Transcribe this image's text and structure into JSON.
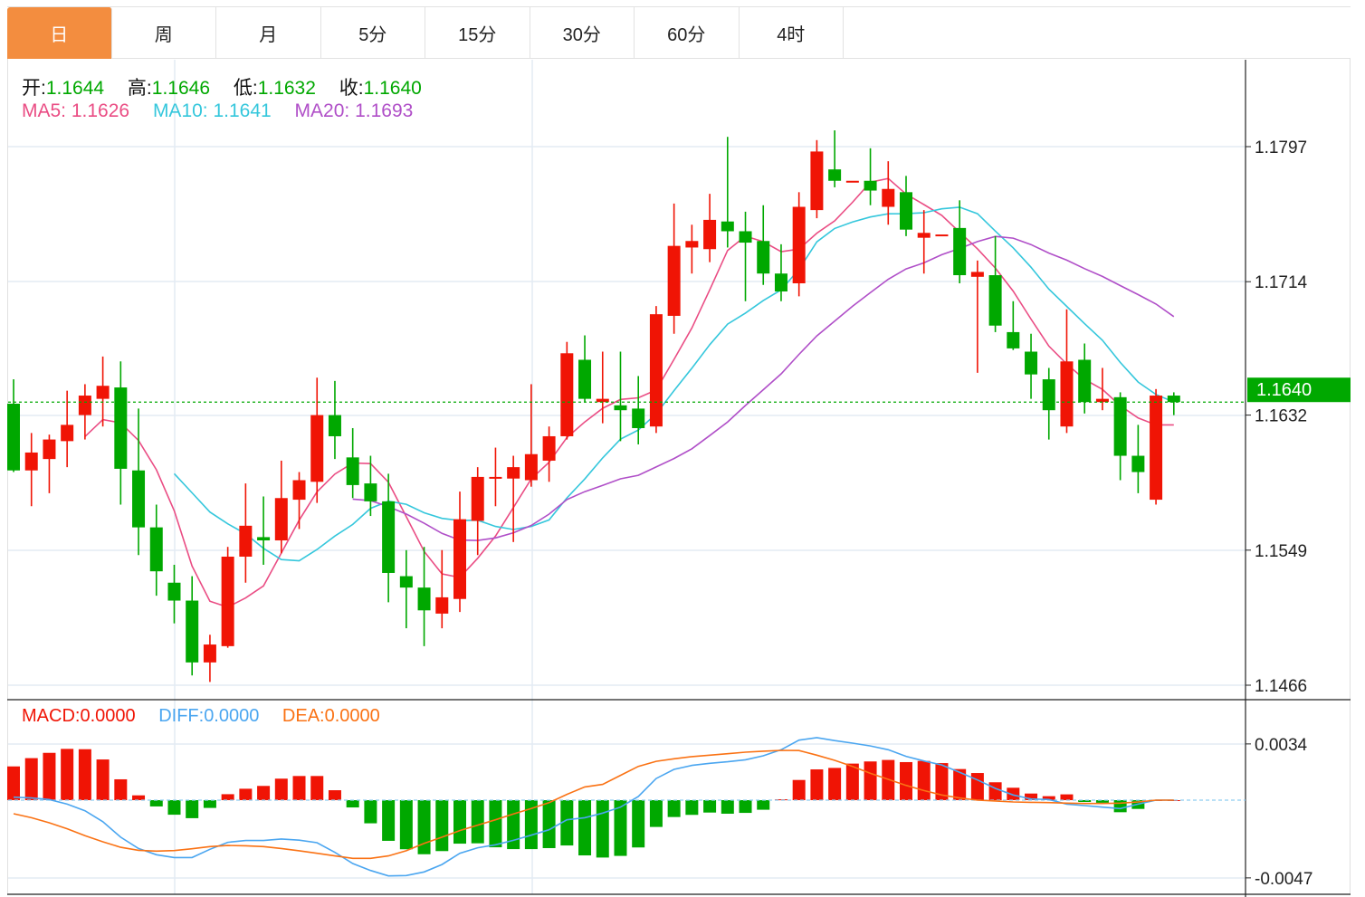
{
  "tabs": [
    {
      "label": "日",
      "active": true
    },
    {
      "label": "周"
    },
    {
      "label": "月"
    },
    {
      "label": "5分"
    },
    {
      "label": "15分"
    },
    {
      "label": "30分"
    },
    {
      "label": "60分"
    },
    {
      "label": "4时"
    }
  ],
  "ohlc_legend": {
    "open_label": "开:",
    "open": "1.1644",
    "high_label": "高:",
    "high": "1.1646",
    "low_label": "低:",
    "low": "1.1632",
    "close_label": "收:",
    "close": "1.1640"
  },
  "ma_legend": {
    "ma5": "MA5: 1.1626",
    "ma10": "MA10: 1.1641",
    "ma20": "MA20: 1.1693"
  },
  "macd_legend": {
    "macd_label": "MACD:",
    "macd": "0.0000",
    "diff_label": "DIFF:",
    "diff": "0.0000",
    "dea_label": "DEA:",
    "dea": "0.0000"
  },
  "colors": {
    "up": "#f01405",
    "down": "#00a800",
    "ma5": "#ea4d84",
    "ma10": "#35c7dc",
    "ma20": "#b04fc8",
    "diff": "#4ba6f0",
    "dea": "#fa7214",
    "accent": "#f38d3f"
  },
  "chart_data": [
    {
      "type": "candlestick",
      "price_axis": {
        "ticks": [
          "1.1797",
          "1.1714",
          "1.1632",
          "1.1549",
          "1.1466"
        ],
        "range": [
          1.1466,
          1.1797
        ]
      },
      "current_price": "1.1640",
      "ma_periods": [
        5,
        10,
        20
      ],
      "candles": [
        [
          1.1639,
          1.1654,
          1.1597,
          1.1598
        ],
        [
          1.1598,
          1.1621,
          1.1576,
          1.1609
        ],
        [
          1.1605,
          1.162,
          1.1584,
          1.1617
        ],
        [
          1.1616,
          1.1647,
          1.16,
          1.1626
        ],
        [
          1.1632,
          1.1651,
          1.1617,
          1.1644
        ],
        [
          1.1642,
          1.1668,
          1.1625,
          1.165
        ],
        [
          1.1649,
          1.1665,
          1.1577,
          1.1599
        ],
        [
          1.1598,
          1.1636,
          1.1546,
          1.1563
        ],
        [
          1.1563,
          1.1577,
          1.1521,
          1.1536
        ],
        [
          1.1529,
          1.154,
          1.1504,
          1.1518
        ],
        [
          1.1518,
          1.1533,
          1.1472,
          1.148
        ],
        [
          1.148,
          1.1497,
          1.1468,
          1.1491
        ],
        [
          1.149,
          1.1551,
          1.1489,
          1.1545
        ],
        [
          1.1545,
          1.159,
          1.1529,
          1.1564
        ],
        [
          1.1557,
          1.1582,
          1.154,
          1.1555
        ],
        [
          1.1555,
          1.1604,
          1.1547,
          1.1581
        ],
        [
          1.158,
          1.1597,
          1.1562,
          1.1592
        ],
        [
          1.1591,
          1.1655,
          1.1578,
          1.1632
        ],
        [
          1.1632,
          1.1653,
          1.1605,
          1.1619
        ],
        [
          1.1606,
          1.1624,
          1.1581,
          1.1589
        ],
        [
          1.159,
          1.1607,
          1.157,
          1.1579
        ],
        [
          1.1579,
          1.1596,
          1.1517,
          1.1535
        ],
        [
          1.1533,
          1.1549,
          1.1501,
          1.1526
        ],
        [
          1.1526,
          1.1551,
          1.149,
          1.1512
        ],
        [
          1.151,
          1.1549,
          1.1501,
          1.152
        ],
        [
          1.1519,
          1.1585,
          1.1511,
          1.1568
        ],
        [
          1.1567,
          1.16,
          1.1546,
          1.1594
        ],
        [
          1.1593,
          1.1612,
          1.1576,
          1.1594
        ],
        [
          1.1593,
          1.1607,
          1.1554,
          1.16
        ],
        [
          1.1592,
          1.1651,
          1.1588,
          1.1608
        ],
        [
          1.1604,
          1.1625,
          1.1591,
          1.1619
        ],
        [
          1.1619,
          1.1677,
          1.1617,
          1.167
        ],
        [
          1.1666,
          1.1681,
          1.164,
          1.1642
        ],
        [
          1.164,
          1.1671,
          1.1627,
          1.1642
        ],
        [
          1.1638,
          1.1671,
          1.1616,
          1.1635
        ],
        [
          1.1636,
          1.1656,
          1.1614,
          1.1624
        ],
        [
          1.1625,
          1.1699,
          1.1621,
          1.1694
        ],
        [
          1.1693,
          1.1762,
          1.1682,
          1.1736
        ],
        [
          1.1735,
          1.1749,
          1.1719,
          1.1739
        ],
        [
          1.1734,
          1.1768,
          1.1726,
          1.1752
        ],
        [
          1.1751,
          1.1803,
          1.1735,
          1.1745
        ],
        [
          1.1745,
          1.1757,
          1.1702,
          1.1738
        ],
        [
          1.1739,
          1.1761,
          1.1712,
          1.1719
        ],
        [
          1.1719,
          1.1737,
          1.1702,
          1.1708
        ],
        [
          1.1713,
          1.1769,
          1.1705,
          1.176
        ],
        [
          1.1758,
          1.1801,
          1.1753,
          1.1794
        ],
        [
          1.1783,
          1.1807,
          1.1772,
          1.1776
        ],
        [
          1.1776,
          1.1776,
          1.1776,
          1.1776
        ],
        [
          1.1776,
          1.1796,
          1.1761,
          1.177
        ],
        [
          1.176,
          1.1788,
          1.1749,
          1.1771
        ],
        [
          1.1769,
          1.1779,
          1.1742,
          1.1746
        ],
        [
          1.1741,
          1.1758,
          1.1719,
          1.1744
        ],
        [
          1.1743,
          1.1743,
          1.1743,
          1.1743
        ],
        [
          1.1747,
          1.1764,
          1.1713,
          1.1718
        ],
        [
          1.1717,
          1.1727,
          1.1658,
          1.172
        ],
        [
          1.1718,
          1.1742,
          1.1683,
          1.1687
        ],
        [
          1.1683,
          1.1702,
          1.1672,
          1.1673
        ],
        [
          1.1671,
          1.1682,
          1.1642,
          1.1657
        ],
        [
          1.1654,
          1.1661,
          1.1617,
          1.1635
        ],
        [
          1.1625,
          1.1697,
          1.1621,
          1.1665
        ],
        [
          1.1666,
          1.1676,
          1.1633,
          1.164
        ],
        [
          1.164,
          1.1661,
          1.1635,
          1.1642
        ],
        [
          1.1643,
          1.1646,
          1.1592,
          1.1607
        ],
        [
          1.1607,
          1.1626,
          1.1584,
          1.1597
        ],
        [
          1.158,
          1.1648,
          1.1577,
          1.1644
        ],
        [
          1.1644,
          1.1646,
          1.1632,
          1.164
        ]
      ]
    },
    {
      "type": "bar+line",
      "axis": {
        "ticks": [
          "0.0034",
          "-0.0047"
        ],
        "range": [
          -0.0047,
          0.0034
        ]
      },
      "macd": [
        0.00204,
        0.00254,
        0.00286,
        0.0031,
        0.00308,
        0.00246,
        0.00126,
        0.00029,
        -0.00038,
        -0.00088,
        -0.00109,
        -0.00047,
        0.00036,
        0.00069,
        0.00086,
        0.0013,
        0.00146,
        0.00146,
        0.0006,
        -0.00044,
        -0.0014,
        -0.00246,
        -0.00297,
        -0.00327,
        -0.00308,
        -0.00263,
        -0.00261,
        -0.00285,
        -0.00296,
        -0.00296,
        -0.0029,
        -0.00274,
        -0.00334,
        -0.00347,
        -0.00337,
        -0.00286,
        -0.00162,
        -0.00102,
        -0.00089,
        -0.00075,
        -0.00082,
        -0.00077,
        -0.00058,
        5e-05,
        0.00122,
        0.00186,
        0.00195,
        0.00221,
        0.00234,
        0.00243,
        0.0023,
        0.00237,
        0.00224,
        0.00188,
        0.00164,
        0.00108,
        0.00075,
        0.0004,
        0.00024,
        0.00035,
        -0.00011,
        -0.00016,
        -0.00073,
        -0.00053,
        0,
        0
      ],
      "diff": [
        0.00018,
        0.00013,
        4e-05,
        -0.00024,
        -0.00064,
        -0.0013,
        -0.00224,
        -0.00292,
        -0.0033,
        -0.00347,
        -0.00347,
        -0.00297,
        -0.00255,
        -0.00244,
        -0.00244,
        -0.00235,
        -0.00242,
        -0.00257,
        -0.00316,
        -0.00383,
        -0.00425,
        -0.00458,
        -0.00456,
        -0.00434,
        -0.00389,
        -0.00321,
        -0.00288,
        -0.0027,
        -0.00243,
        -0.00212,
        -0.00179,
        -0.00119,
        -0.00106,
        -0.00078,
        -0.00042,
        0.00022,
        0.00131,
        0.00186,
        0.0021,
        0.00223,
        0.00232,
        0.00244,
        0.00268,
        0.00305,
        0.00363,
        0.00378,
        0.0036,
        0.00345,
        0.00328,
        0.00305,
        0.00265,
        0.00237,
        0.00213,
        0.00168,
        0.00122,
        0.00071,
        0.00031,
        7e-05,
        4e-05,
        -0.00024,
        -0.00033,
        -0.00042,
        -0.00051,
        -0.00024,
        0,
        0
      ],
      "dea": [
        -0.00082,
        -0.00106,
        -0.00137,
        -0.00173,
        -0.00215,
        -0.00252,
        -0.00285,
        -0.00303,
        -0.00308,
        -0.00305,
        -0.00294,
        -0.00281,
        -0.00274,
        -0.00276,
        -0.00281,
        -0.00292,
        -0.00306,
        -0.00321,
        -0.00337,
        -0.00352,
        -0.00352,
        -0.00337,
        -0.00306,
        -0.00261,
        -0.00224,
        -0.00184,
        -0.00151,
        -0.00119,
        -0.00084,
        -0.00051,
        -0.00015,
        0.00035,
        0.0008,
        0.00095,
        0.0015,
        0.00204,
        0.00235,
        0.0025,
        0.00263,
        0.00272,
        0.00281,
        0.0029,
        0.00296,
        0.00301,
        0.003,
        0.00272,
        0.00241,
        0.00204,
        0.00162,
        0.00126,
        0.00089,
        0.00058,
        0.00031,
        0.00013,
        0,
        -5e-05,
        -0.00011,
        -0.00013,
        -0.00015,
        -0.00018,
        -0.0002,
        -0.0002,
        -0.00018,
        -0.00011,
        0,
        0
      ]
    }
  ]
}
